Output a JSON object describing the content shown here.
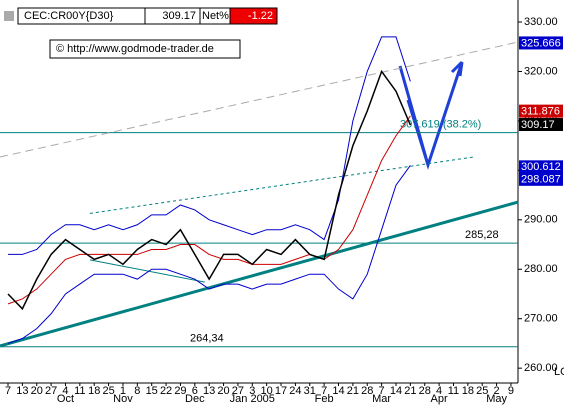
{
  "header": {
    "symbol": "CEC:CR00Y{D30}",
    "last": "309.17",
    "net_label": "Net%",
    "net": "-1.22"
  },
  "copyright": "© http://www.godmode-trader.de",
  "chart_data": {
    "type": "line",
    "categories": [
      "7",
      "13",
      "20",
      "27",
      "4",
      "11",
      "18",
      "25",
      "1",
      "8",
      "15",
      "22",
      "29",
      "6",
      "13",
      "20",
      "27",
      "3",
      "10",
      "17",
      "24",
      "31",
      "7",
      "14",
      "21",
      "28",
      "7",
      "14",
      "21",
      "28",
      "4",
      "11",
      "18",
      "25",
      "2",
      "9"
    ],
    "month_labels": [
      null,
      null,
      null,
      null,
      "Oct",
      null,
      null,
      null,
      "Nov",
      null,
      null,
      null,
      null,
      "Dec",
      null,
      null,
      null,
      "Jan 2005",
      null,
      null,
      null,
      null,
      "Feb",
      null,
      null,
      null,
      "Mar",
      null,
      null,
      null,
      "Apr",
      null,
      null,
      null,
      "May",
      null
    ],
    "series": [
      {
        "color": "#0000cc",
        "values": [
          283,
          283,
          284,
          287,
          289,
          289,
          288,
          289,
          288,
          289,
          291,
          291,
          293,
          292,
          290,
          289,
          288,
          287,
          288,
          288,
          289,
          288,
          286,
          294,
          310,
          320,
          327,
          327,
          318,
          null,
          null,
          null,
          null,
          null,
          null,
          null
        ]
      },
      {
        "color": "#0000cc",
        "values": [
          265,
          266,
          268,
          271,
          275,
          277,
          279,
          279,
          279,
          278,
          280,
          280,
          279,
          278,
          276,
          277,
          277,
          276,
          277,
          277,
          278,
          279,
          279,
          276,
          274,
          279,
          288,
          297,
          301,
          null,
          null,
          null,
          null,
          null,
          null,
          null
        ]
      },
      {
        "color": "#cc0000",
        "values": [
          273,
          274,
          276,
          279,
          282,
          283,
          283,
          283,
          283,
          283,
          284,
          284,
          285,
          285,
          283,
          282,
          282,
          281,
          281,
          281,
          282,
          283,
          282,
          284,
          288,
          295,
          302,
          307,
          311,
          null,
          null,
          null,
          null,
          null,
          null,
          null
        ]
      },
      {
        "color": "#000000",
        "values": [
          275,
          272,
          278,
          283,
          286,
          284,
          282,
          283,
          281,
          284,
          286,
          285,
          288,
          283,
          278,
          283,
          283,
          281,
          284,
          283,
          286,
          283,
          282,
          295,
          305,
          312,
          320,
          316,
          309.17,
          null,
          null,
          null,
          null,
          null,
          null,
          null
        ]
      }
    ],
    "ylim": [
      257,
      334.45
    ],
    "yticks": [
      {
        "value": 330,
        "label": "330.00"
      },
      {
        "value": 320,
        "label": "320.00"
      },
      {
        "value": 310,
        "label": "310.00"
      },
      {
        "value": 300,
        "label": "300.00"
      },
      {
        "value": 290,
        "label": "290.00"
      },
      {
        "value": 280,
        "label": "280.00"
      },
      {
        "value": 270,
        "label": "270.00"
      },
      {
        "value": 260,
        "label": "260.00"
      }
    ],
    "hlines": [
      {
        "value": 285.28,
        "label": "285,28",
        "color": "#008080"
      },
      {
        "value": 264.34,
        "label": "264,34",
        "color": "#008080"
      },
      {
        "value": 307.619,
        "label": "307.619 (38.2%)",
        "color": "#008080"
      }
    ],
    "trendlines": [
      {
        "color": "#008080",
        "width": 3,
        "x": [
          -0.56,
          35.5
        ],
        "y": [
          264.5,
          293.6
        ]
      },
      {
        "color": "#aaaaaa",
        "width": 1,
        "dash": "8 5",
        "x": [
          -0.56,
          35.5
        ],
        "y": [
          302.7,
          325.95
        ]
      },
      {
        "color": "#008080",
        "width": 1,
        "dash": "3 3",
        "x": [
          5.7,
          32.4
        ],
        "y": [
          291.3,
          302.7
        ]
      },
      {
        "color": "#008080",
        "width": 1,
        "x": [
          5.7,
          13.7
        ],
        "y": [
          281.9,
          277.4
        ]
      }
    ],
    "price_markers": [
      {
        "value": 325.666,
        "color": "#0000cc"
      },
      {
        "value": 311.876,
        "color": "#cc0000"
      },
      {
        "value": 309.17,
        "color": "#000000"
      },
      {
        "value": 300.612,
        "color": "#0000cc"
      },
      {
        "value": 298.087,
        "color": "#0000cc"
      }
    ],
    "corner_label": "LO"
  }
}
